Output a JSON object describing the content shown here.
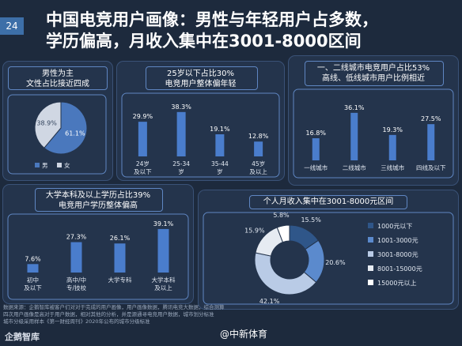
{
  "page_number": "24",
  "title_line1": "中国电竞用户画像：男性与年轻用户占多数，",
  "title_line2": "学历偏高，月收入集中在3001-8000区间",
  "source_text": [
    "数据来源：企鹅智库被客户们对对于完成的用户画像，用户画像数据，腾讯电竞大数据，综合测算",
    "四次用户画像是高对于用户数据，相对其他的分析，并是源通寻电竞用户数据，城市划分标准",
    "城市分级采用样本《第一财经周刊》2020年公布的城市分级标准"
  ],
  "logo": "企鹅智库",
  "watermark": "@中新体育",
  "chart_data": [
    {
      "id": "gender",
      "type": "pie",
      "title_lines": [
        "男性为主",
        "文性占比接近四成"
      ],
      "slices": [
        {
          "label": "男",
          "value": 61.1,
          "display": "61.1%",
          "color": "#4a78bd"
        },
        {
          "label": "女",
          "value": 38.9,
          "display": "38.9%",
          "color": "#d0d7e3"
        }
      ]
    },
    {
      "id": "age",
      "type": "bar",
      "title_lines": [
        "25岁以下占比30%",
        "电竞用户整体偏年轻"
      ],
      "categories": [
        [
          "24岁",
          "及以下"
        ],
        [
          "25-34",
          "岁"
        ],
        [
          "35-44",
          "岁"
        ],
        [
          "45岁",
          "及以上"
        ]
      ],
      "values": [
        29.9,
        38.3,
        19.1,
        12.8
      ],
      "display": [
        "29.9%",
        "38.3%",
        "19.1%",
        "12.8%"
      ],
      "ylim": [
        0,
        45
      ]
    },
    {
      "id": "city",
      "type": "bar",
      "title_lines": [
        "一、二线城市电竞用户占比53%",
        "高线、低线城市用户比例相近"
      ],
      "categories": [
        [
          "一线城市"
        ],
        [
          "二线城市"
        ],
        [
          "三线城市"
        ],
        [
          "四线及以下"
        ]
      ],
      "values": [
        16.8,
        36.1,
        19.3,
        27.5
      ],
      "display": [
        "16.8%",
        "36.1%",
        "19.3%",
        "27.5%"
      ],
      "ylim": [
        0,
        42
      ]
    },
    {
      "id": "education",
      "type": "bar",
      "title_lines": [
        "大学本科及以上学历占比39%",
        "电竞用户学历整体偏高"
      ],
      "categories": [
        [
          "初中",
          "及以下"
        ],
        [
          "高中/中",
          "专/技校"
        ],
        [
          "大学专科"
        ],
        [
          "大学本科",
          "及以上"
        ]
      ],
      "values": [
        7.6,
        27.3,
        26.1,
        39.1
      ],
      "display": [
        "7.6%",
        "27.3%",
        "26.1%",
        "39.1%"
      ],
      "ylim": [
        0,
        44
      ]
    },
    {
      "id": "income",
      "type": "pie",
      "title_lines": [
        "个人月收入集中在3001-8000元区间"
      ],
      "slices": [
        {
          "label": "1000元以下",
          "value": 15.5,
          "display": "15.5%",
          "color": "#2f5689"
        },
        {
          "label": "1001-3000元",
          "value": 20.6,
          "display": "20.6%",
          "color": "#5b8acd"
        },
        {
          "label": "3001-8000元",
          "value": 42.1,
          "display": "42.1%",
          "color": "#b9cbe6"
        },
        {
          "label": "8001-15000元",
          "value": 15.9,
          "display": "15.9%",
          "color": "#e6ebf2"
        },
        {
          "label": "15000元以上",
          "value": 5.8,
          "display": "5.8%",
          "color": "#ffffff"
        }
      ]
    }
  ]
}
